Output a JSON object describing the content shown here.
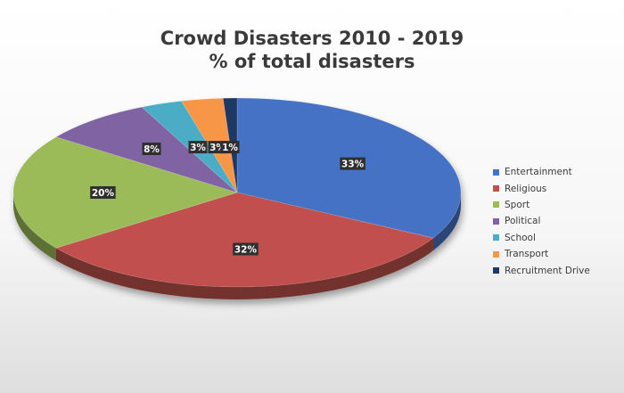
{
  "chart_data": {
    "type": "pie",
    "title": "Crowd Disasters 2010 - 2019",
    "subtitle": "% of total disasters",
    "legend_position": "right",
    "slices": [
      {
        "name": "Entertainment",
        "value": 33,
        "label": "33%",
        "color": "#4472C4"
      },
      {
        "name": "Religious",
        "value": 32,
        "label": "32%",
        "color": "#C0504D"
      },
      {
        "name": "Sport",
        "value": 20,
        "label": "20%",
        "color": "#9BBB59"
      },
      {
        "name": "Political",
        "value": 8,
        "label": "8%",
        "color": "#8064A2"
      },
      {
        "name": "School",
        "value": 3,
        "label": "3%",
        "color": "#4BACC6"
      },
      {
        "name": "Transport",
        "value": 3,
        "label": "3%",
        "color": "#F79646"
      },
      {
        "name": "Recruitment Drive",
        "value": 1,
        "label": "1%",
        "color": "#1F3864"
      }
    ]
  }
}
